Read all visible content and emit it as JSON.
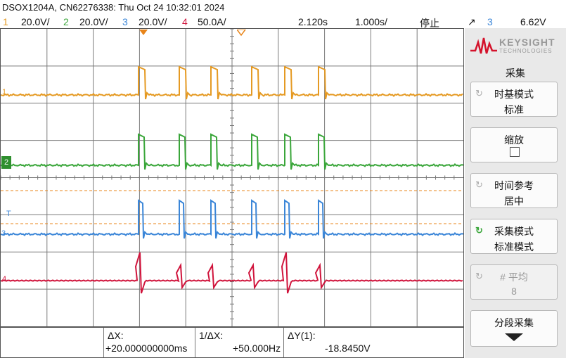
{
  "header": {
    "title": "DSOX1204A, CN62276338: Thu Oct 24 10:32:01 2024",
    "channels": [
      {
        "num": "1",
        "scale": "20.0V/",
        "color": "#e59a23"
      },
      {
        "num": "2",
        "scale": "20.0V/",
        "color": "#3aa63a"
      },
      {
        "num": "3",
        "scale": "20.0V/",
        "color": "#3b86d8"
      },
      {
        "num": "4",
        "scale": "50.0A/",
        "color": "#d0143c"
      }
    ],
    "time_offset": "2.120s",
    "time_scale": "1.000s/",
    "run_state": "停止",
    "trigger_slope": "↗",
    "trigger_channel": "3",
    "trigger_level": "6.62V"
  },
  "markers": {
    "ch1": "1",
    "ch2": "2",
    "ch3": "3",
    "ch4": "4",
    "trigger": "T"
  },
  "measurements": {
    "dx_label": "ΔX:",
    "dx_value": "+20.000000000ms",
    "inv_dx_label": "1/ΔX:",
    "inv_dx_value": "+50.000Hz",
    "dy_label": "ΔY(1):",
    "dy_value": "-18.8450V"
  },
  "sidebar": {
    "brand": "KEYSIGHT",
    "brand_sub": "TECHNOLOGIES",
    "section": "采集",
    "buttons": [
      {
        "line1": "时基模式",
        "line2": "标准"
      },
      {
        "line1": "缩放",
        "line2": ""
      },
      {
        "line1": "时间参考",
        "line2": "居中"
      },
      {
        "line1": "采集模式",
        "line2": "标准模式"
      },
      {
        "line1": "# 平均",
        "line2": "8"
      },
      {
        "line1": "分段采集",
        "line2": ""
      }
    ]
  }
}
